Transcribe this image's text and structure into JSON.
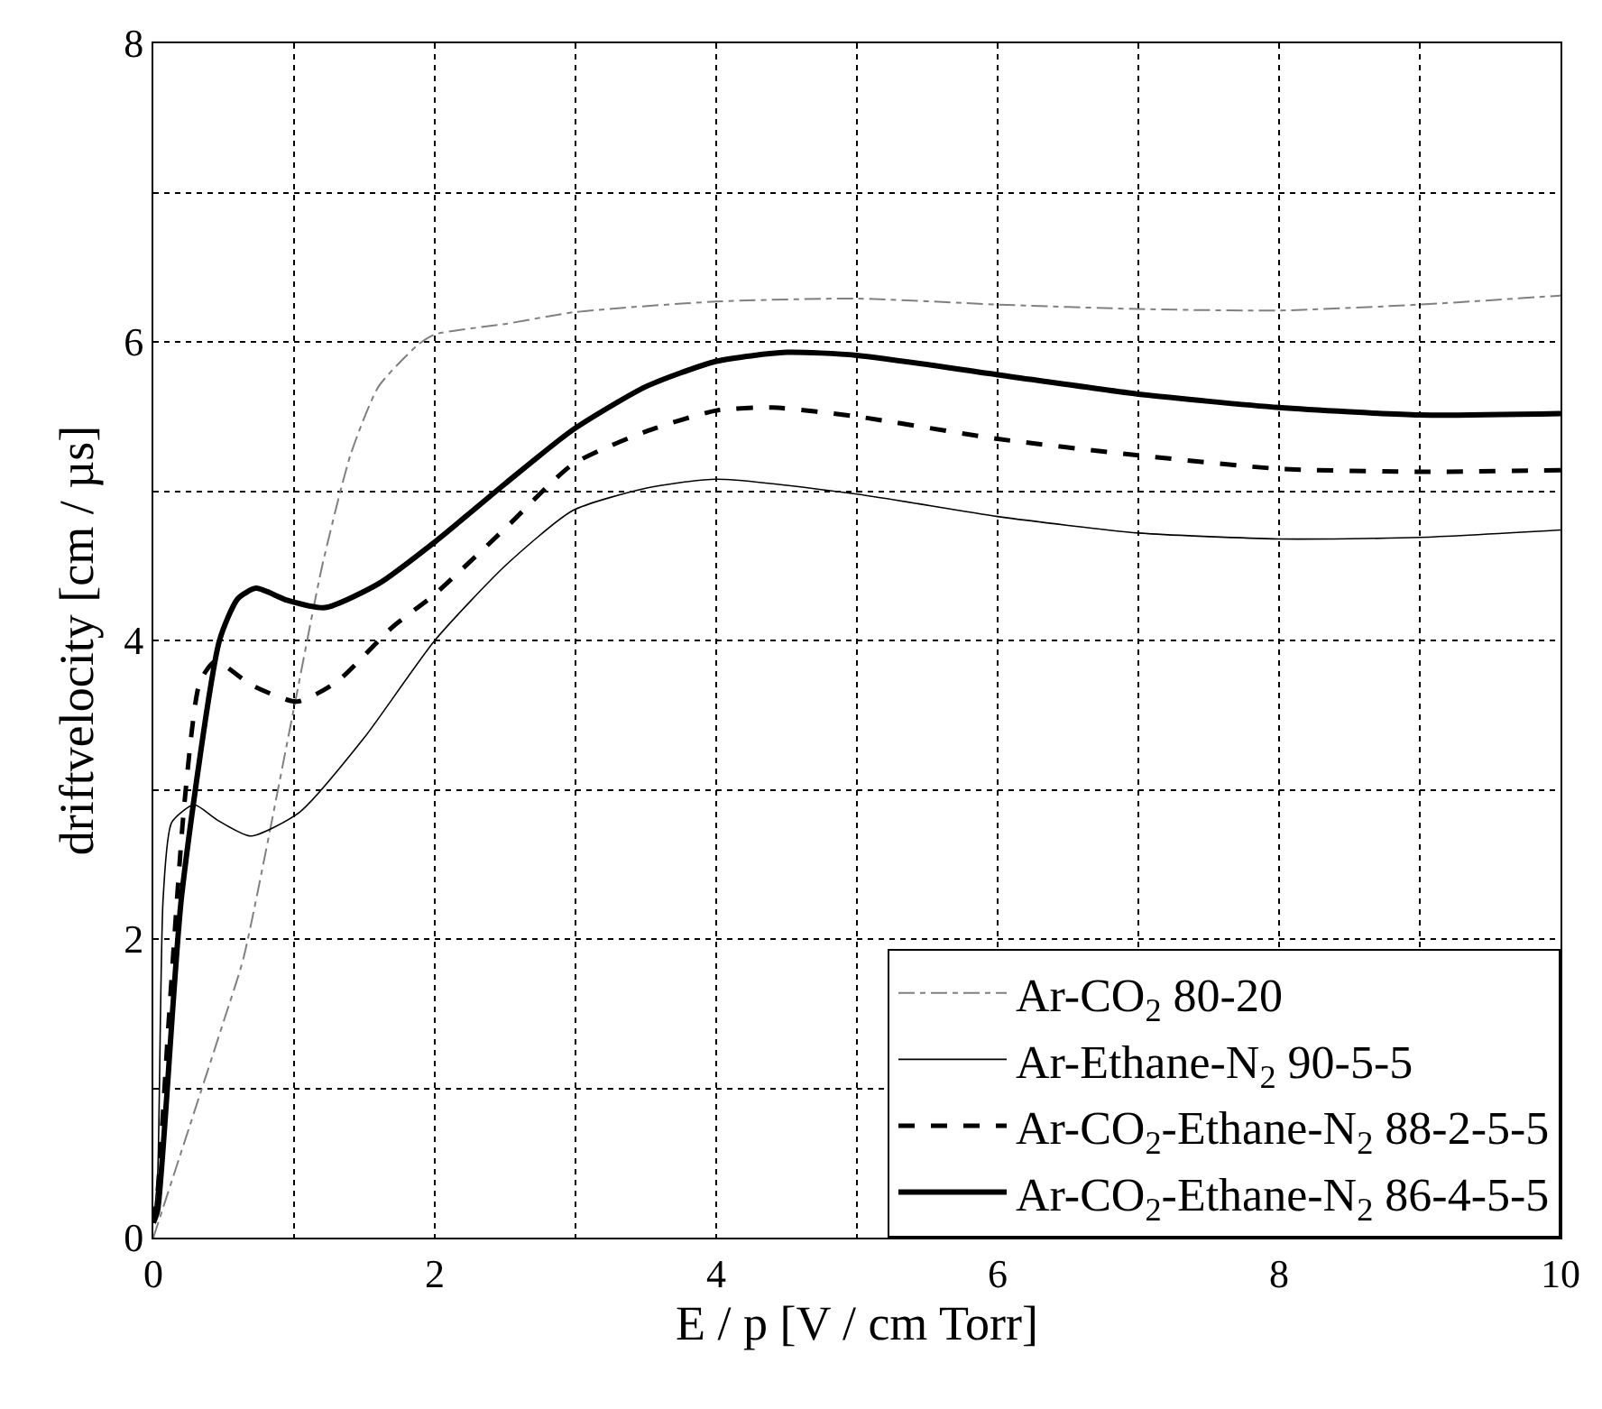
{
  "chart_data": {
    "type": "line",
    "xlabel": "E / p [V / cm Torr]",
    "ylabel": "driftvelocity [cm / µs]",
    "xlim": [
      0,
      10
    ],
    "ylim": [
      0,
      8
    ],
    "xticks": [
      0,
      {
        "value": 1,
        "label": null
      },
      2,
      {
        "value": 3,
        "label": null
      },
      4,
      {
        "value": 5,
        "label": null
      },
      6,
      {
        "value": 7,
        "label": null
      },
      8,
      {
        "value": 9,
        "label": null
      },
      10
    ],
    "yticks": [
      0,
      {
        "value": 1,
        "label": null
      },
      2,
      {
        "value": 3,
        "label": null
      },
      4,
      {
        "value": 5,
        "label": null
      },
      6,
      {
        "value": 7,
        "label": null
      },
      8
    ],
    "grid": true,
    "legend": "bottom right",
    "marker": "none",
    "series": [
      {
        "name": "Ar-CO$_{2}$ 80-20",
        "color": "#808080",
        "line_style": "dashdot",
        "x": [
          0,
          0.5,
          0.64,
          1.0,
          1.2,
          1.4,
          1.6,
          1.88,
          2.0,
          2.5,
          3,
          4,
          5,
          6,
          7,
          8,
          9,
          10
        ],
        "values": [
          0,
          1.45,
          1.87,
          3.55,
          4.5,
          5.24,
          5.7,
          5.98,
          6.05,
          6.12,
          6.2,
          6.27,
          6.29,
          6.25,
          6.22,
          6.21,
          6.25,
          6.31
        ]
      },
      {
        "name": "Ar-Ethane-N$_{2}$ 90-5-5",
        "color": "#000000",
        "line_style": "solid",
        "x": [
          0,
          0.03,
          0.07,
          0.13,
          0.29,
          0.45,
          0.69,
          1.04,
          1.5,
          2.0,
          2.5,
          2.98,
          3.5,
          4,
          5,
          6,
          7,
          8,
          9,
          10
        ],
        "values": [
          0.1,
          0.4,
          2.28,
          2.78,
          2.9,
          2.8,
          2.69,
          2.85,
          3.35,
          4.0,
          4.5,
          4.87,
          5.02,
          5.08,
          4.98,
          4.83,
          4.72,
          4.68,
          4.69,
          4.74
        ]
      },
      {
        "name": "Ar-CO$_{2}$-Ethane-N$_{2}$ 88-2-5-5",
        "color": "#000000",
        "line_style": "dashed",
        "x": [
          0,
          0.03,
          0.11,
          0.22,
          0.33,
          0.44,
          0.7,
          1.02,
          1.3,
          1.7,
          2.0,
          2.5,
          2.98,
          3.5,
          4,
          4.4,
          5,
          6,
          7,
          8,
          9,
          10
        ],
        "values": [
          0.1,
          0.3,
          1.46,
          2.9,
          3.72,
          3.86,
          3.7,
          3.59,
          3.72,
          4.09,
          4.31,
          4.75,
          5.18,
          5.4,
          5.54,
          5.56,
          5.5,
          5.35,
          5.24,
          5.15,
          5.13,
          5.14
        ]
      },
      {
        "name": "Ar-CO$_{2}$-Ethane-N$_{2}$ 86-4-5-5",
        "color": "#000000",
        "line_style": "solid",
        "x": [
          0,
          0.03,
          0.2,
          0.47,
          0.6,
          0.73,
          0.95,
          1.22,
          1.6,
          2.0,
          2.5,
          2.98,
          3.5,
          4,
          4.5,
          5,
          6,
          7,
          8,
          9,
          10
        ],
        "values": [
          0.1,
          0.18,
          2.28,
          4.0,
          4.28,
          4.35,
          4.27,
          4.22,
          4.38,
          4.66,
          5.05,
          5.41,
          5.7,
          5.87,
          5.93,
          5.91,
          5.78,
          5.65,
          5.56,
          5.51,
          5.52
        ]
      }
    ]
  }
}
